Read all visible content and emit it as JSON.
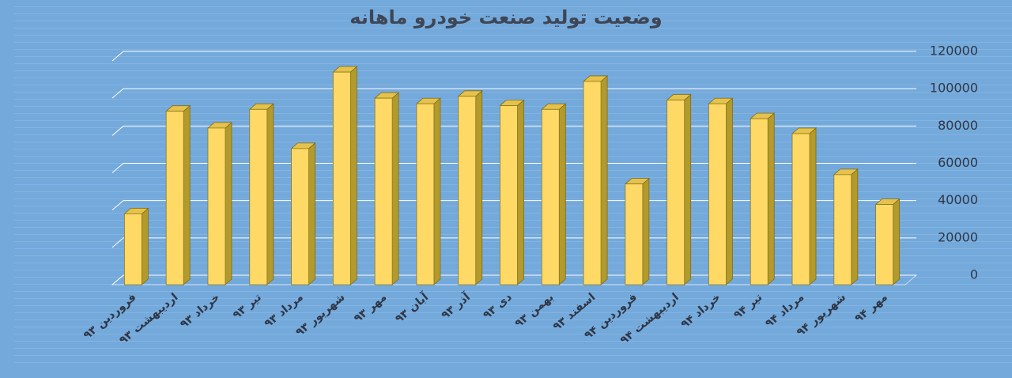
{
  "chart_data": {
    "type": "bar3d",
    "title": "وضعیت تولید صنعت خودرو ماهانه",
    "categories": [
      "فروردین ۹۳",
      "اردیبهشت ۹۳",
      "خرداد ۹۳",
      "تیر ۹۳",
      "مرداد ۹۳",
      "شهریور ۹۳",
      "مهر ۹۳",
      "آبان ۹۳",
      "آذر ۹۳",
      "دی ۹۳",
      "بهمن ۹۳",
      "اسفند ۹۳",
      "فروردین ۹۴",
      "اردیبهشت ۹۴",
      "خرداد ۹۴",
      "تیر ۹۴",
      "مرداد ۹۴",
      "شهریور ۹۴",
      "مهر ۹۴"
    ],
    "values": [
      38000,
      93000,
      84000,
      94000,
      73000,
      114000,
      100000,
      97000,
      101000,
      96000,
      94000,
      109000,
      54000,
      99000,
      97000,
      89000,
      81000,
      59000,
      43000
    ],
    "color": "#ffd966",
    "ylim": [
      0,
      120000
    ],
    "yticks": [
      0,
      20000,
      40000,
      60000,
      80000,
      100000,
      120000
    ],
    "grid": true
  }
}
